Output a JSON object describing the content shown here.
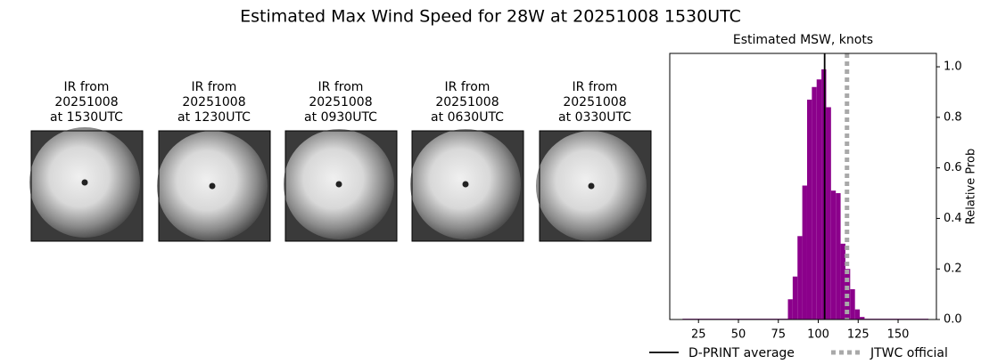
{
  "title": "Estimated Max Wind Speed for 28W at 20251008 1530UTC",
  "panels": [
    {
      "lines": [
        "IR from",
        "20251008",
        "at 1530UTC"
      ]
    },
    {
      "lines": [
        "IR from",
        "20251008",
        "at 1230UTC"
      ]
    },
    {
      "lines": [
        "IR from",
        "20251008",
        "at 0930UTC"
      ]
    },
    {
      "lines": [
        "IR from",
        "20251008",
        "at 0630UTC"
      ]
    },
    {
      "lines": [
        "IR from",
        "20251008",
        "at 0330UTC"
      ]
    }
  ],
  "chart_data": {
    "type": "histogram",
    "title": "Estimated MSW, knots",
    "ylabel": "Relative Prob",
    "y_axis_side": "right",
    "color": "#8b008b",
    "bins": [
      15,
      81,
      84,
      87,
      90,
      93,
      96,
      99,
      102,
      105,
      108,
      111,
      114,
      117,
      120,
      123,
      126,
      129,
      169
    ],
    "values": [
      0.003,
      0.08,
      0.17,
      0.33,
      0.53,
      0.87,
      0.92,
      0.95,
      0.99,
      0.84,
      0.51,
      0.5,
      0.3,
      0.2,
      0.12,
      0.04,
      0.01,
      0.003
    ],
    "xlim": [
      7,
      174
    ],
    "xticks": [
      25,
      50,
      75,
      100,
      125,
      150
    ],
    "ylim": [
      0,
      1.053
    ],
    "yticks": [
      {
        "value": 0,
        "label": "0.0"
      },
      {
        "value": 0.2,
        "label": "0.2"
      },
      {
        "value": 0.4,
        "label": "0.4"
      },
      {
        "value": 0.6,
        "label": "0.6"
      },
      {
        "value": 0.8,
        "label": "0.8"
      },
      {
        "value": 1,
        "label": "1.0"
      }
    ],
    "vlines": [
      {
        "name": "D-PRINT average",
        "x": 104,
        "color": "#000000",
        "style": "solid"
      },
      {
        "name": "JTWC official",
        "x": 118,
        "color": "#a9a9a9",
        "style": "dotted"
      }
    ]
  }
}
